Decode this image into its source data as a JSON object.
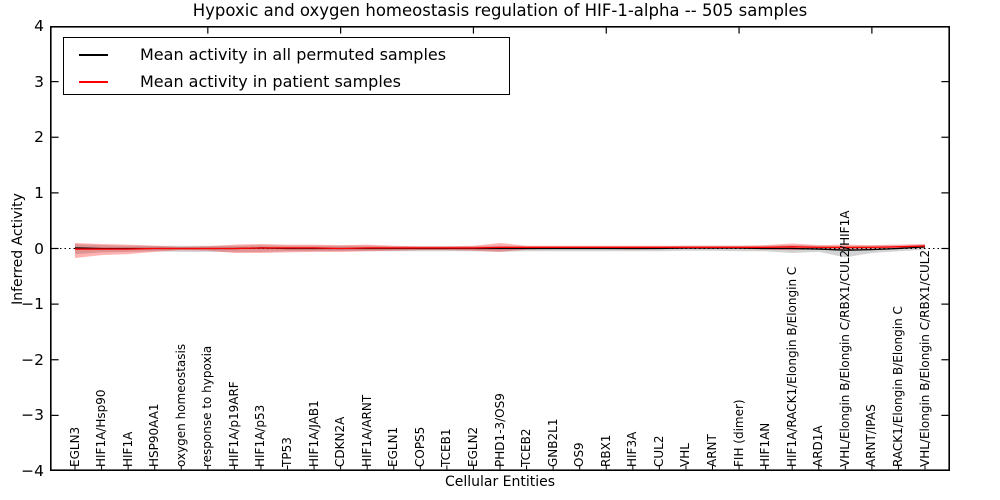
{
  "chart_data": {
    "type": "line",
    "title": "Hypoxic and oxygen homeostasis regulation of HIF-1-alpha -- 505 samples",
    "xlabel": "Cellular Entities",
    "ylabel": "Inferred Activity",
    "ylim": [
      -4,
      4
    ],
    "grid": false,
    "legend_position": "upper left",
    "zero_line": {
      "style": "dotted",
      "color": "#000000",
      "y": 0
    },
    "y_tick_labels": [
      "4",
      "3",
      "2",
      "1",
      "0",
      "−1",
      "−2",
      "−3",
      "−4"
    ],
    "y_tick_values": [
      4,
      3,
      2,
      1,
      0,
      -1,
      -2,
      -3,
      -4
    ],
    "x_major_tick_indices": [
      5,
      10,
      15,
      20,
      25,
      30
    ],
    "categories": [
      "EGLN3",
      "HIF1A/Hsp90",
      "HIF1A",
      "HSP90AA1",
      "oxygen homeostasis",
      "response to hypoxia",
      "HIF1A/p19ARF",
      "HIF1A/p53",
      "TP53",
      "HIF1A/JAB1",
      "CDKN2A",
      "HIF1A/ARNT",
      "EGLN1",
      "COPS5",
      "TCEB1",
      "EGLN2",
      "PHD1-3/OS9",
      "TCEB2",
      "GNB2L1",
      "OS9",
      "RBX1",
      "HIF3A",
      "CUL2",
      "VHL",
      "ARNT",
      "FIH (dimer)",
      "HIF1AN",
      "HIF1A/RACK1/Elongin B/Elongin C",
      "ARD1A",
      "VHL/Elongin B/Elongin C/RBX1/CUL2/HIF1A",
      "ARNT/IPAS",
      "RACK1/Elongin B/Elongin C",
      "VHL/Elongin B/Elongin C/RBX1/CUL2"
    ],
    "legend": [
      {
        "label": "Mean activity in all permuted samples",
        "color": "#000000"
      },
      {
        "label": "Mean activity in patient samples",
        "color": "#ff0000"
      }
    ],
    "series": [
      {
        "name": "Mean activity in all permuted samples",
        "color": "#000000",
        "band_color": "#808080",
        "band_opacity": 0.35,
        "values": [
          0.01,
          0,
          0,
          0,
          0,
          0,
          0,
          0.01,
          0,
          0,
          0,
          0,
          0,
          0,
          0,
          0,
          0,
          0,
          0,
          0,
          0,
          0,
          0,
          0.01,
          0.01,
          0.01,
          0,
          0,
          -0.01,
          -0.03,
          -0.02,
          0,
          0.03
        ],
        "band_low": [
          -0.1,
          -0.07,
          -0.06,
          -0.05,
          -0.06,
          -0.06,
          -0.06,
          -0.06,
          -0.05,
          -0.05,
          -0.05,
          -0.05,
          -0.05,
          -0.05,
          -0.05,
          -0.05,
          -0.06,
          -0.05,
          -0.05,
          -0.05,
          -0.05,
          -0.05,
          -0.05,
          -0.04,
          -0.04,
          -0.05,
          -0.05,
          -0.08,
          -0.06,
          -0.16,
          -0.08,
          -0.05,
          -0.02
        ],
        "band_high": [
          0.08,
          0.06,
          0.05,
          0.05,
          0.05,
          0.05,
          0.05,
          0.06,
          0.05,
          0.05,
          0.05,
          0.05,
          0.04,
          0.04,
          0.04,
          0.04,
          0.05,
          0.04,
          0.04,
          0.04,
          0.04,
          0.04,
          0.04,
          0.05,
          0.05,
          0.05,
          0.05,
          0.06,
          0.05,
          0.04,
          0.05,
          0.05,
          0.07
        ]
      },
      {
        "name": "Mean activity in patient samples",
        "color": "#ff0000",
        "band_color": "#ff0000",
        "band_opacity": 0.3,
        "values": [
          -0.01,
          -0.01,
          -0.01,
          0,
          0,
          0,
          0,
          0.01,
          0.01,
          0.01,
          0,
          0.01,
          0.01,
          0.01,
          0.01,
          0.01,
          0.02,
          0.02,
          0.02,
          0.02,
          0.02,
          0.02,
          0.02,
          0.02,
          0.02,
          0.02,
          0.02,
          0.03,
          0.02,
          0.02,
          0.02,
          0.03,
          0.045
        ],
        "band_low": [
          -0.17,
          -0.12,
          -0.1,
          -0.06,
          -0.03,
          -0.04,
          -0.08,
          -0.08,
          -0.07,
          -0.06,
          -0.06,
          -0.05,
          -0.04,
          -0.03,
          -0.03,
          -0.04,
          -0.06,
          -0.02,
          -0.01,
          -0.01,
          -0.01,
          -0.02,
          -0.01,
          -0.01,
          -0.01,
          -0.01,
          -0.02,
          -0.03,
          -0.01,
          -0.02,
          -0.01,
          0,
          0.01
        ],
        "band_high": [
          0.1,
          0.08,
          0.07,
          0.05,
          0.03,
          0.04,
          0.07,
          0.08,
          0.07,
          0.07,
          0.06,
          0.07,
          0.05,
          0.04,
          0.04,
          0.05,
          0.1,
          0.05,
          0.05,
          0.05,
          0.05,
          0.05,
          0.05,
          0.05,
          0.05,
          0.05,
          0.06,
          0.09,
          0.06,
          0.07,
          0.06,
          0.07,
          0.08
        ]
      }
    ]
  }
}
